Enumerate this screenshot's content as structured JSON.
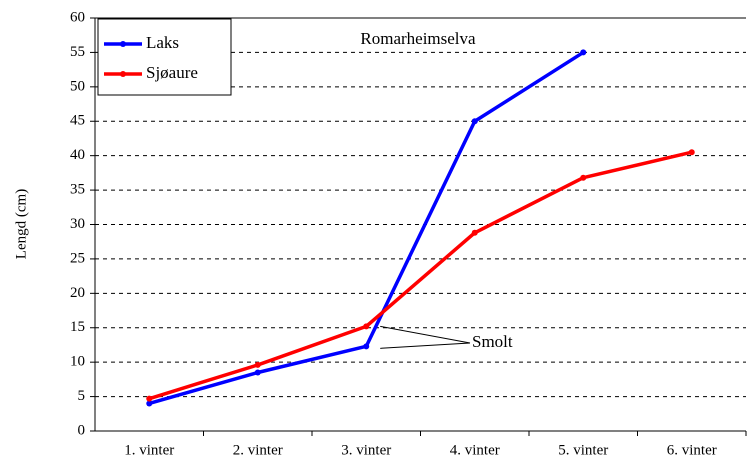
{
  "chart_data": {
    "type": "line",
    "title": "Romarheimselva",
    "ylabel": "Lengd (cm)",
    "annotation": "Smolt",
    "categories": [
      "1. vinter",
      "2. vinter",
      "3. vinter",
      "4. vinter",
      "5. vinter",
      "6. vinter"
    ],
    "series": [
      {
        "name": "Laks",
        "color": "#0000ff",
        "values": [
          4,
          8.5,
          12.3,
          45,
          55,
          null
        ]
      },
      {
        "name": "Sjøaure",
        "color": "#ff0000",
        "values": [
          4.7,
          9.6,
          15.2,
          28.8,
          36.8,
          40.5
        ]
      }
    ],
    "ylim": [
      0,
      60
    ],
    "yticks": [
      0,
      5,
      10,
      15,
      20,
      25,
      30,
      35,
      40,
      45,
      50,
      55,
      60
    ],
    "grid": true,
    "legend": "upper left"
  }
}
